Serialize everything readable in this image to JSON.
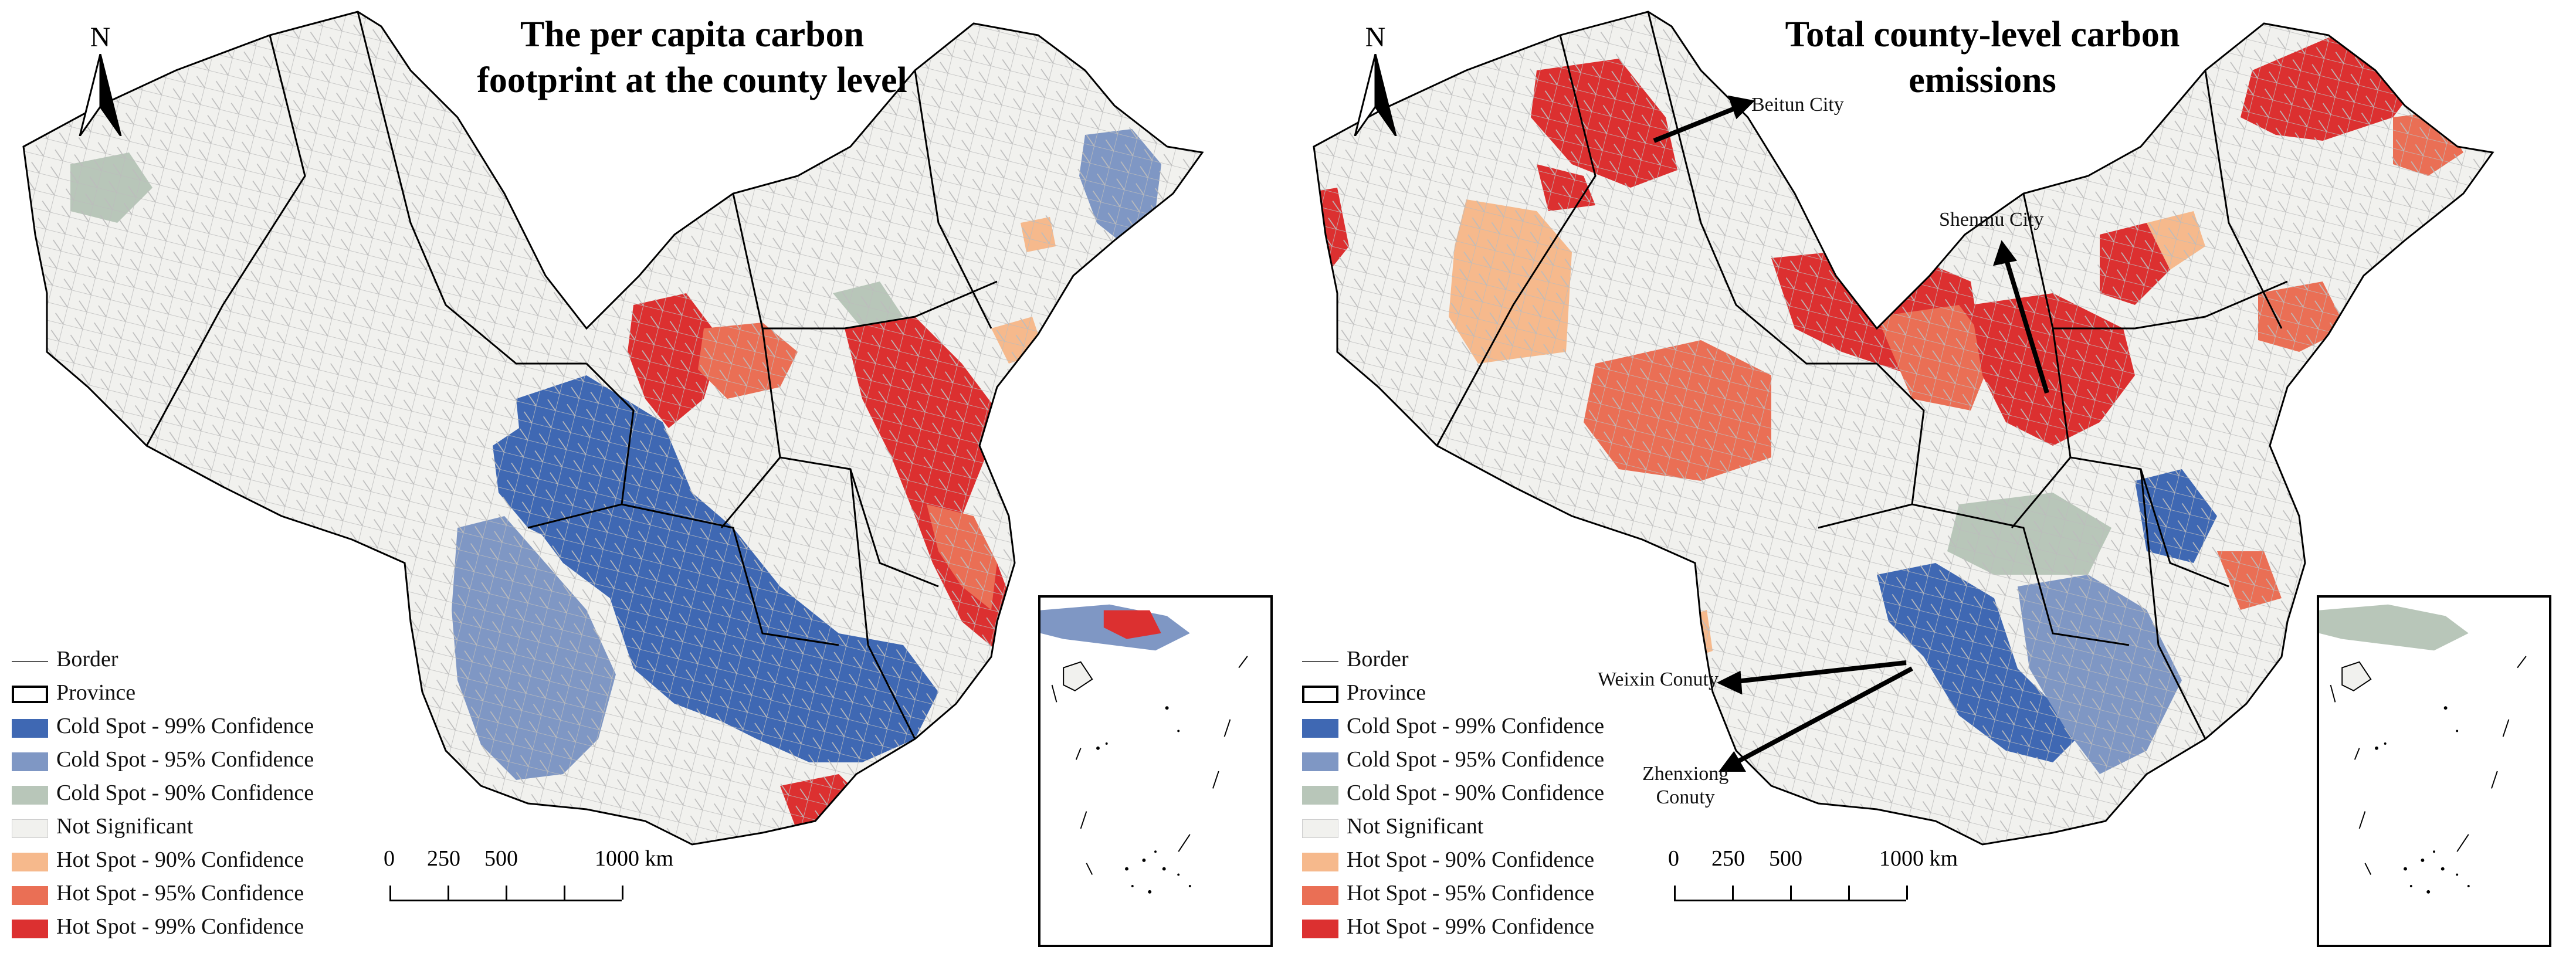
{
  "colors": {
    "cold99": "#3f68b3",
    "cold95": "#7f97c4",
    "cold90": "#b8c6b9",
    "not_significant": "#f1f1ee",
    "hot90": "#f6b98c",
    "hot95": "#ea6f55",
    "hot99": "#dc3030",
    "county_line": "#b9b9b9",
    "province_line": "#000000"
  },
  "north_label": "N",
  "legend": [
    {
      "key": "border",
      "symbol": "line",
      "label": "Border"
    },
    {
      "key": "province",
      "symbol": "box",
      "label": "Province"
    },
    {
      "key": "cold99",
      "symbol": "fill",
      "label": "Cold Spot - 99% Confidence"
    },
    {
      "key": "cold95",
      "symbol": "fill",
      "label": "Cold Spot - 95% Confidence"
    },
    {
      "key": "cold90",
      "symbol": "fill",
      "label": "Cold Spot - 90% Confidence"
    },
    {
      "key": "not_significant",
      "symbol": "fill",
      "label": "Not Significant"
    },
    {
      "key": "hot90",
      "symbol": "fill",
      "label": "Hot Spot - 90% Confidence"
    },
    {
      "key": "hot95",
      "symbol": "fill",
      "label": "Hot Spot - 95% Confidence"
    },
    {
      "key": "hot99",
      "symbol": "fill",
      "label": "Hot Spot - 99% Confidence"
    }
  ],
  "scale_bar": {
    "ticks": [
      "0",
      "250",
      "500",
      "1000 km"
    ]
  },
  "panels": [
    {
      "id": "left",
      "title": "The per capita carbon\nfootprint at the county level",
      "annotations": []
    },
    {
      "id": "right",
      "title": "Total county-level carbon\nemissions",
      "annotations": [
        {
          "label": "Beitun City"
        },
        {
          "label": "Shenmu City"
        },
        {
          "label": "Weixin Conuty"
        },
        {
          "label": "Zhenxiong\nConuty"
        }
      ]
    }
  ]
}
